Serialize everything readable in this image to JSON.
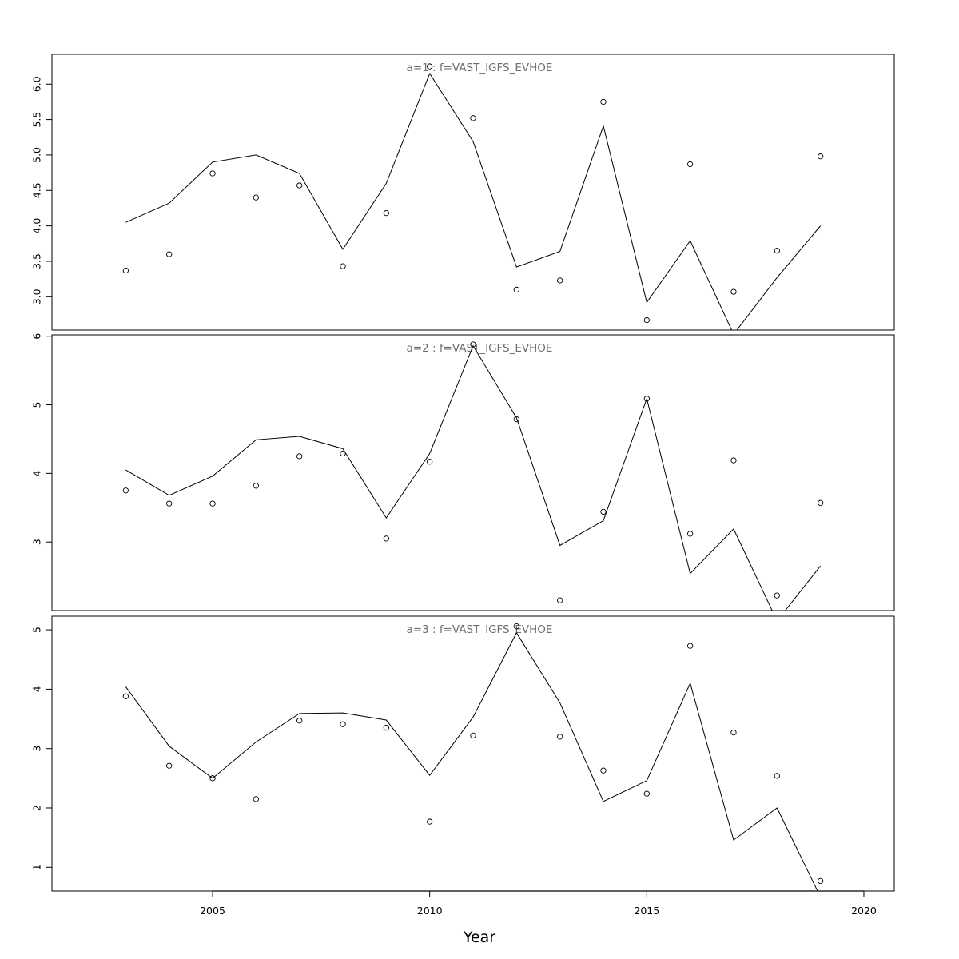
{
  "chart_data": {
    "type": "line",
    "xlabel": "Year",
    "xlim": [
      2001.3,
      2020.7
    ],
    "x_ticks": [
      2005,
      2010,
      2015,
      2020
    ],
    "x_tick_labels": [
      "2005",
      "2010",
      "2015",
      "2020"
    ],
    "x": [
      2003,
      2004,
      2005,
      2006,
      2007,
      2008,
      2009,
      2010,
      2011,
      2012,
      2013,
      2014,
      2015,
      2016,
      2017,
      2018,
      2019
    ],
    "panels": [
      {
        "title": "a=1  :  f=VAST_IGFS_EVHOE",
        "ylim": [
          2.53,
          6.42
        ],
        "y_ticks": [
          3.0,
          3.5,
          4.0,
          4.5,
          5.0,
          5.5,
          6.0
        ],
        "y_tick_labels": [
          "3.0",
          "3.5",
          "4.0",
          "4.5",
          "5.0",
          "5.5",
          "6.0"
        ],
        "observed": [
          3.37,
          3.6,
          4.74,
          4.4,
          4.57,
          3.43,
          4.18,
          6.25,
          5.52,
          3.1,
          3.23,
          5.75,
          2.67,
          4.87,
          3.07,
          3.65,
          4.98
        ],
        "fitted": [
          4.05,
          4.32,
          4.9,
          5.0,
          4.74,
          3.67,
          4.6,
          6.15,
          5.19,
          3.42,
          3.64,
          5.41,
          2.92,
          3.79,
          2.47,
          3.27,
          4.0
        ]
      },
      {
        "title": "a=2  :  f=VAST_IGFS_EVHOE",
        "ylim": [
          2.0,
          6.02
        ],
        "y_ticks": [
          3,
          4,
          5,
          6
        ],
        "y_tick_labels": [
          "3",
          "4",
          "5",
          "6"
        ],
        "observed": [
          3.75,
          3.56,
          3.56,
          3.82,
          4.25,
          4.29,
          3.05,
          4.17,
          5.88,
          4.79,
          2.15,
          3.44,
          5.09,
          3.12,
          4.19,
          2.22,
          3.57
        ],
        "fitted": [
          4.05,
          3.68,
          3.96,
          4.49,
          4.54,
          4.36,
          3.35,
          4.29,
          5.86,
          4.81,
          2.95,
          3.31,
          5.09,
          2.54,
          3.19,
          1.85,
          2.65
        ]
      },
      {
        "title": "a=3  :  f=VAST_IGFS_EVHOE",
        "ylim": [
          0.6,
          5.23
        ],
        "y_ticks": [
          1,
          2,
          3,
          4,
          5
        ],
        "y_tick_labels": [
          "1",
          "2",
          "3",
          "4",
          "5"
        ],
        "observed": [
          3.88,
          2.71,
          2.5,
          2.15,
          3.47,
          3.41,
          3.35,
          1.77,
          3.22,
          5.06,
          3.2,
          2.63,
          2.24,
          4.73,
          3.27,
          2.54,
          0.77
        ],
        "fitted": [
          4.04,
          3.04,
          2.5,
          3.11,
          3.59,
          3.6,
          3.48,
          2.55,
          3.53,
          4.95,
          3.77,
          2.11,
          2.46,
          4.1,
          1.46,
          2.0,
          0.5
        ]
      }
    ]
  }
}
